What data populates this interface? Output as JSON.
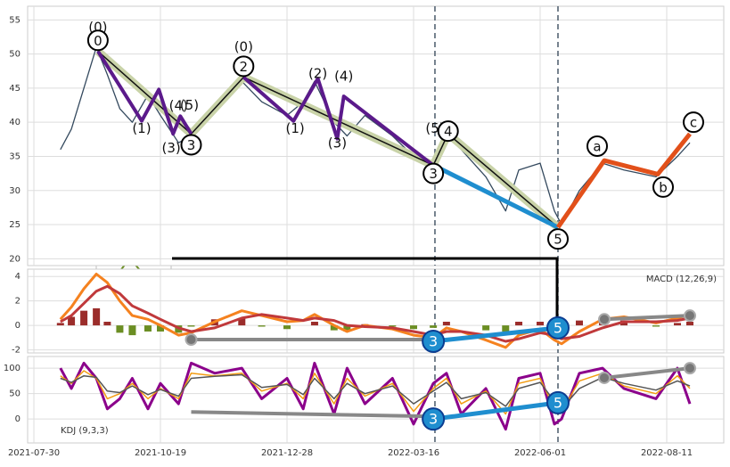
{
  "chart_data": [
    {
      "type": "line",
      "color": "#34495e",
      "x": [
        "2021-08-16",
        "2021-08-23",
        "2021-08-31",
        "2021-09-08",
        "2021-09-15",
        "2021-09-23",
        "2021-10-01",
        "2021-10-11",
        "2021-10-19",
        "2021-10-29",
        "2021-11-05",
        "2021-11-18",
        "2021-12-03",
        "2021-12-14",
        "2021-12-28",
        "2022-01-07",
        "2022-01-14",
        "2022-01-26",
        "2022-02-03",
        "2022-02-14",
        "2022-03-03",
        "2022-03-16",
        "2022-03-28",
        "2022-04-05",
        "2022-04-14",
        "2022-04-29",
        "2022-05-11",
        "2022-05-19",
        "2022-06-01",
        "2022-06-09",
        "2022-06-13",
        "2022-06-23",
        "2022-07-06",
        "2022-07-18",
        "2022-08-05",
        "2022-08-17",
        "2022-08-24"
      ],
      "values": [
        36,
        39,
        45,
        51,
        47,
        42,
        40,
        44,
        41,
        37,
        38,
        42,
        46,
        43,
        41,
        43,
        46,
        40,
        38,
        41,
        38,
        35,
        33,
        38,
        36,
        32,
        27,
        33,
        34,
        27,
        25,
        30,
        34,
        33,
        32,
        35,
        37
      ],
      "ylim": [
        19,
        57
      ],
      "yticks": [
        20,
        25,
        30,
        35,
        40,
        45,
        50,
        55
      ],
      "grid": true,
      "vlines": [
        "2022-03-29",
        "2022-06-11"
      ],
      "waves": [
        {
          "color": "#c9d3a8",
          "width": 9,
          "x": [
            "2021-09-09",
            "2021-11-05",
            "2021-12-04",
            "2022-03-28",
            "2022-04-06",
            "2022-06-11"
          ],
          "values": [
            50.4,
            38.3,
            46.6,
            33.7,
            38.3,
            24.6
          ]
        },
        {
          "color": "#111111",
          "width": 1.5,
          "x": [
            "2021-09-09",
            "2021-11-05",
            "2021-12-04",
            "2022-03-28",
            "2022-04-06",
            "2022-06-11"
          ],
          "values": [
            50.4,
            38.3,
            46.6,
            33.7,
            38.3,
            24.6
          ]
        },
        {
          "color": "#5b1a8b",
          "width": 4,
          "x": [
            "2021-09-09",
            "2021-10-07",
            "2021-10-18",
            "2021-10-26",
            "2021-10-30",
            "2021-11-05"
          ],
          "values": [
            50.4,
            40.2,
            44.8,
            38.3,
            40.9,
            38.3
          ]
        },
        {
          "color": "#5b1a8b",
          "width": 4,
          "x": [
            "2021-12-04",
            "2022-01-01",
            "2022-01-16",
            "2022-01-28",
            "2022-02-01",
            "2022-03-28"
          ],
          "values": [
            46.6,
            40.2,
            46.4,
            37.6,
            43.8,
            33.7
          ]
        },
        {
          "color": "#1f8ecf",
          "width": 5,
          "x": [
            "2022-03-28",
            "2022-06-11"
          ],
          "values": [
            33.7,
            24.6
          ]
        },
        {
          "color": "#e2501a",
          "width": 5,
          "x": [
            "2022-06-11",
            "2022-07-07",
            "2022-08-06",
            "2022-08-24"
          ],
          "values": [
            24.6,
            34.4,
            32.4,
            38.3
          ]
        }
      ],
      "annotations": [
        {
          "x": "2021-09-09",
          "y": 54,
          "text": "(0)",
          "style": "plain"
        },
        {
          "x": "2021-09-09",
          "y": 52,
          "text": "0",
          "style": "circle"
        },
        {
          "x": "2021-10-07",
          "y": 39.2,
          "text": "(1)",
          "style": "plain"
        },
        {
          "x": "2021-10-25",
          "y": 36.3,
          "text": "(3)",
          "style": "plain"
        },
        {
          "x": "2021-10-29",
          "y": 42.5,
          "text": "(4)",
          "style": "plain"
        },
        {
          "x": "2021-11-04",
          "y": 42.6,
          "text": "(5)",
          "style": "plain"
        },
        {
          "x": "2021-11-05",
          "y": 36.7,
          "text": "3",
          "style": "circle"
        },
        {
          "x": "2021-12-04",
          "y": 51.1,
          "text": "(0)",
          "style": "plain"
        },
        {
          "x": "2021-12-04",
          "y": 48.2,
          "text": "2",
          "style": "circle"
        },
        {
          "x": "2022-01-02",
          "y": 39.2,
          "text": "(1)",
          "style": "plain"
        },
        {
          "x": "2022-01-16",
          "y": 47.2,
          "text": "(2)",
          "style": "plain"
        },
        {
          "x": "2022-01-28",
          "y": 37,
          "text": "(3)",
          "style": "plain"
        },
        {
          "x": "2022-02-01",
          "y": 46.8,
          "text": "(4)",
          "style": "plain"
        },
        {
          "x": "2022-03-29",
          "y": 39.2,
          "text": "(5)",
          "style": "plain"
        },
        {
          "x": "2022-03-28",
          "y": 32.5,
          "text": "3",
          "style": "circle"
        },
        {
          "x": "2022-04-06",
          "y": 38.7,
          "text": "4",
          "style": "circle"
        },
        {
          "x": "2022-06-11",
          "y": 22.9,
          "text": "5",
          "style": "circle"
        },
        {
          "x": "2022-07-03",
          "y": 36.5,
          "text": "a",
          "style": "circle"
        },
        {
          "x": "2022-08-09",
          "y": 30.5,
          "text": "b",
          "style": "circle"
        },
        {
          "x": "2022-08-26",
          "y": 40,
          "text": "c",
          "style": "circle"
        }
      ]
    },
    {
      "type": "macd",
      "title": "MACD (12,26,9)",
      "x": [
        "2021-08-16",
        "2021-08-23",
        "2021-08-31",
        "2021-09-08",
        "2021-09-15",
        "2021-09-23",
        "2021-10-01",
        "2021-10-11",
        "2021-10-19",
        "2021-10-29",
        "2021-11-05",
        "2021-11-18",
        "2021-12-03",
        "2021-12-14",
        "2021-12-28",
        "2022-01-07",
        "2022-01-14",
        "2022-01-26",
        "2022-02-03",
        "2022-02-14",
        "2022-03-03",
        "2022-03-16",
        "2022-03-28",
        "2022-04-05",
        "2022-04-14",
        "2022-04-29",
        "2022-05-11",
        "2022-05-19",
        "2022-06-01",
        "2022-06-09",
        "2022-06-13",
        "2022-06-23",
        "2022-07-06",
        "2022-07-18",
        "2022-08-05",
        "2022-08-17",
        "2022-08-24"
      ],
      "histogram": {
        "up_color": "#9b2d2b",
        "down_color": "#6b8e23",
        "values": [
          0.2,
          0.7,
          1.2,
          1.4,
          0.3,
          -0.6,
          -0.8,
          -0.5,
          -0.5,
          -0.6,
          -0.1,
          0.5,
          0.6,
          -0.1,
          -0.3,
          0,
          0.3,
          -0.4,
          -0.5,
          0.1,
          -0.1,
          -0.3,
          -0.2,
          0.3,
          0,
          -0.4,
          -0.5,
          0.3,
          0.3,
          -0.4,
          -0.4,
          0.4,
          0.7,
          0.4,
          -0.1,
          0.2,
          0.3
        ]
      },
      "series": [
        {
          "color": "#f5821f",
          "values": [
            0.5,
            1.5,
            3,
            4.2,
            3.5,
            2,
            0.8,
            0.5,
            0,
            -0.8,
            -0.6,
            0.3,
            1.2,
            0.8,
            0.3,
            0.4,
            0.9,
            0,
            -0.5,
            0,
            -0.3,
            -0.8,
            -1,
            -0.2,
            -0.5,
            -1.2,
            -1.8,
            -0.8,
            -0.3,
            -1.2,
            -1.5,
            -0.5,
            0.5,
            0.7,
            0.2,
            0.6,
            0.9
          ]
        },
        {
          "color": "#c0393b",
          "values": [
            0.3,
            0.8,
            1.8,
            2.8,
            3.2,
            2.6,
            1.6,
            1.0,
            0.5,
            -0.2,
            -0.5,
            -0.2,
            0.6,
            0.9,
            0.6,
            0.4,
            0.6,
            0.4,
            0,
            -0.1,
            -0.2,
            -0.5,
            -0.8,
            -0.5,
            -0.5,
            -0.8,
            -1.3,
            -1.1,
            -0.6,
            -0.8,
            -1.1,
            -0.9,
            -0.2,
            0.3,
            0.3,
            0.4,
            0.6
          ]
        }
      ],
      "ylim": [
        -2.25,
        4.6
      ],
      "yticks": [
        -2,
        0,
        2,
        4
      ],
      "grid": true,
      "vlines": [
        "2022-03-29",
        "2022-06-11"
      ],
      "waves": [
        {
          "color": "#888888",
          "width": 4,
          "marker": true,
          "x": [
            "2021-11-05",
            "2022-03-28"
          ],
          "values": [
            -1.16,
            -1.16
          ]
        },
        {
          "color": "#1f8ecf",
          "width": 5,
          "x": [
            "2022-03-28",
            "2022-06-11"
          ],
          "values": [
            -1.3,
            -0.2
          ]
        },
        {
          "color": "#888888",
          "width": 4,
          "marker": true,
          "x": [
            "2022-07-07",
            "2022-08-24"
          ],
          "values": [
            0.5,
            0.8
          ]
        }
      ],
      "annotations": [
        {
          "x": "2022-03-28",
          "y": -1.3,
          "text": "3",
          "style": "filled"
        },
        {
          "x": "2022-06-11",
          "y": -0.2,
          "text": "5",
          "style": "filled"
        }
      ]
    },
    {
      "type": "kdj",
      "title": "KDJ (9,3,3)",
      "x": [
        "2021-08-16",
        "2021-08-23",
        "2021-08-31",
        "2021-09-08",
        "2021-09-15",
        "2021-09-23",
        "2021-10-01",
        "2021-10-11",
        "2021-10-19",
        "2021-10-29",
        "2021-11-05",
        "2021-11-18",
        "2021-12-03",
        "2021-12-14",
        "2021-12-28",
        "2022-01-07",
        "2022-01-14",
        "2022-01-26",
        "2022-02-03",
        "2022-02-14",
        "2022-03-03",
        "2022-03-16",
        "2022-03-28",
        "2022-04-05",
        "2022-04-14",
        "2022-04-29",
        "2022-05-11",
        "2022-05-19",
        "2022-06-01",
        "2022-06-09",
        "2022-06-13",
        "2022-06-23",
        "2022-07-06",
        "2022-07-18",
        "2022-08-05",
        "2022-08-17",
        "2022-08-24"
      ],
      "series": [
        {
          "color": "#8b008b",
          "width": 3,
          "values": [
            100,
            60,
            110,
            80,
            20,
            40,
            80,
            20,
            70,
            30,
            110,
            90,
            100,
            40,
            80,
            20,
            110,
            10,
            100,
            30,
            80,
            -10,
            70,
            90,
            10,
            60,
            -20,
            80,
            90,
            -10,
            0,
            90,
            100,
            60,
            40,
            100,
            30
          ]
        },
        {
          "color": "#f39c12",
          "width": 1.5,
          "values": [
            85,
            70,
            95,
            80,
            40,
            50,
            70,
            40,
            60,
            40,
            90,
            85,
            90,
            55,
            70,
            40,
            90,
            30,
            80,
            45,
            70,
            15,
            60,
            80,
            30,
            55,
            10,
            70,
            80,
            20,
            15,
            75,
            90,
            65,
            50,
            85,
            60
          ]
        },
        {
          "color": "#555555",
          "width": 1.5,
          "values": [
            80,
            72,
            85,
            82,
            55,
            52,
            65,
            48,
            58,
            45,
            80,
            84,
            87,
            62,
            68,
            48,
            80,
            40,
            70,
            50,
            65,
            30,
            55,
            72,
            40,
            52,
            25,
            60,
            72,
            35,
            20,
            60,
            82,
            70,
            57,
            75,
            65
          ]
        }
      ],
      "ylim": [
        -47,
        123
      ],
      "yticks": [
        0,
        50,
        100
      ],
      "grid": true,
      "xlim": [
        "2021-07-26",
        "2022-09-12"
      ],
      "xticks": [
        "2021-07-30",
        "2021-10-19",
        "2021-12-28",
        "2022-03-16",
        "2022-06-01",
        "2022-08-11"
      ],
      "vlines": [
        "2022-03-29",
        "2022-06-11"
      ],
      "waves": [
        {
          "color": "#888888",
          "width": 4,
          "x": [
            "2021-11-05",
            "2022-03-28"
          ],
          "values": [
            14,
            5
          ]
        },
        {
          "color": "#1f8ecf",
          "width": 5,
          "x": [
            "2022-03-28",
            "2022-06-11"
          ],
          "values": [
            0,
            32
          ]
        },
        {
          "color": "#888888",
          "width": 4,
          "marker": true,
          "x": [
            "2022-07-07",
            "2022-08-24"
          ],
          "values": [
            81,
            100
          ]
        }
      ],
      "annotations": [
        {
          "x": "2022-03-28",
          "y": 0,
          "text": "3",
          "style": "filled"
        },
        {
          "x": "2022-06-11",
          "y": 32,
          "text": "5",
          "style": "filled"
        }
      ]
    }
  ]
}
